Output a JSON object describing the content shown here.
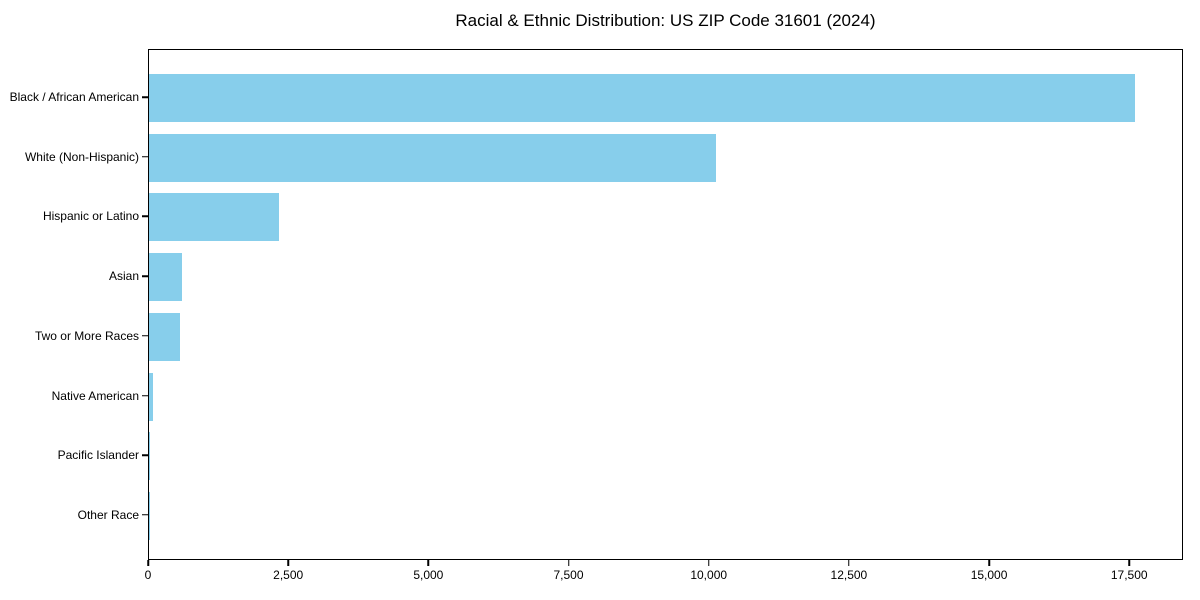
{
  "title": "Racial & Ethnic Distribution: US ZIP Code 31601 (2024)",
  "chart_data": {
    "type": "bar",
    "orientation": "horizontal",
    "title": "Racial & Ethnic Distribution: US ZIP Code 31601 (2024)",
    "categories": [
      "Black / African American",
      "White (Non-Hispanic)",
      "Hispanic or Latino",
      "Asian",
      "Two or More Races",
      "Native American",
      "Pacific Islander",
      "Other Race"
    ],
    "values": [
      17580,
      10120,
      2310,
      590,
      550,
      75,
      15,
      25
    ],
    "xlabel": "",
    "ylabel": "",
    "xlim": [
      0,
      18459
    ],
    "xticks": [
      0,
      2500,
      5000,
      7500,
      10000,
      12500,
      15000,
      17500
    ],
    "xtick_labels": [
      "0",
      "2,500",
      "5,000",
      "7,500",
      "10,000",
      "12,500",
      "15,000",
      "17,500"
    ],
    "bar_color": "#87CEEB",
    "axis_color": "#000000",
    "background_color": "#ffffff",
    "grid": false,
    "legend": null
  }
}
